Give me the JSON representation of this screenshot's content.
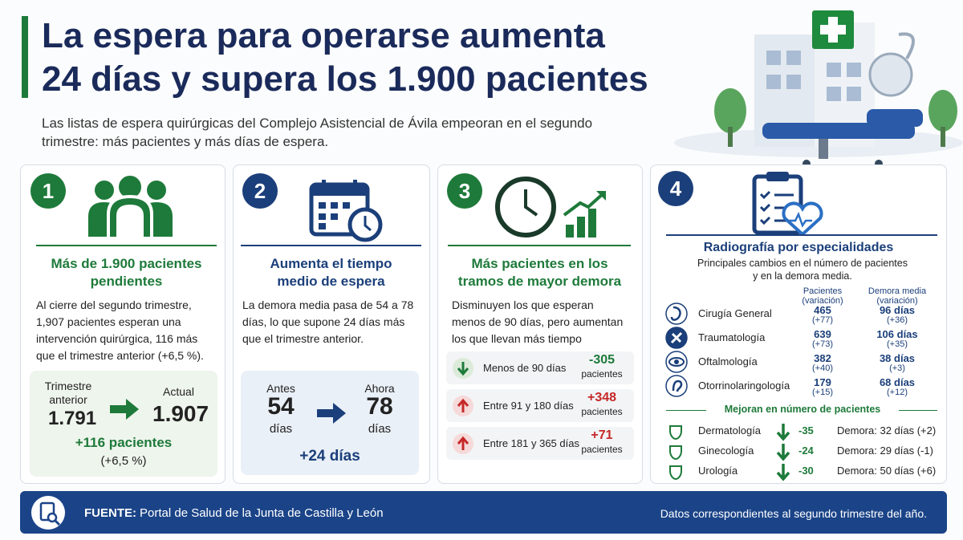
{
  "header": {
    "title_line1": "La espera para operarse aumenta",
    "title_line2": "24 días y supera los 1.900 pacientes",
    "subtitle": "Las listas de espera quirúrgicas del Complejo Asistencial de Ávila empeoran en el segundo trimestre: más pacientes y más días de espera."
  },
  "cards": [
    {
      "number": "1",
      "heading": "Más de 1.900 pacientes pendientes",
      "text": "Al cierre del segundo trimestre, 1,907 pacientes esperan una intervención quirúrgica, 116 más que el trimestre anterior (+6,5 %).",
      "before_label": "Trimestre anterior",
      "before_value": "1.791",
      "after_label": "Actual",
      "after_value": "1.907",
      "change": "+116 pacientes",
      "change_pct": "(+6,5 %)"
    },
    {
      "number": "2",
      "heading": "Aumenta el tiempo medio de espera",
      "text": "La demora media pasa de 54 a 78 días, lo que supone 24 días más que el trimestre anterior.",
      "before_label": "Antes",
      "before_value": "54",
      "before_unit": "días",
      "after_label": "Ahora",
      "after_value": "78",
      "after_unit": "días",
      "change": "+24 días"
    },
    {
      "number": "3",
      "heading": "Más pacientes en los tramos de mayor demora",
      "text": "Disminuyen los que esperan menos de 90 días, pero aumentan los que llevan más tiempo esperando.",
      "rows": [
        {
          "label": "Menos de 90 días",
          "value": "-305",
          "unit": "pacientes"
        },
        {
          "label": "Entre 91 y 180 días",
          "value": "+348",
          "unit": "pacientes"
        },
        {
          "label": "Entre 181 y 365 días",
          "value": "+71",
          "unit": "pacientes"
        }
      ]
    },
    {
      "number": "4",
      "heading": "Radiografía por especialidades",
      "subheading": "Principales cambios en el número de pacientes y en la demora media.",
      "col_patients": "Pacientes",
      "col_patients_note": "(variación)",
      "col_delay": "Demora media",
      "col_delay_note": "(variación)",
      "specialties": [
        {
          "name": "Cirugía General",
          "patients": "465",
          "patients_change": "(+77)",
          "delay": "96 días",
          "delay_change": "(+36)"
        },
        {
          "name": "Traumatología",
          "patients": "639",
          "patients_change": "(+73)",
          "delay": "106 días",
          "delay_change": "(+35)"
        },
        {
          "name": "Oftalmología",
          "patients": "382",
          "patients_change": "(+40)",
          "delay": "38 días",
          "delay_change": "(+3)"
        },
        {
          "name": "Otorrinolaringología",
          "patients": "179",
          "patients_change": "(+15)",
          "delay": "68 días",
          "delay_change": "(+12)"
        }
      ],
      "improve_heading": "Mejoran en número de pacientes",
      "improvements": [
        {
          "name": "Dermatología",
          "change": "-35",
          "delay": "Demora: 32 días (+2)"
        },
        {
          "name": "Ginecología",
          "change": "-24",
          "delay": "Demora: 29 días (-1)"
        },
        {
          "name": "Urología",
          "change": "-30",
          "delay": "Demora: 50 días (+6)"
        }
      ]
    }
  ],
  "footer": {
    "source_label": "FUENTE:",
    "source": "Portal de Salud de la Junta de Castilla y León",
    "note": "Datos correspondientes al segundo trimestre del año."
  }
}
